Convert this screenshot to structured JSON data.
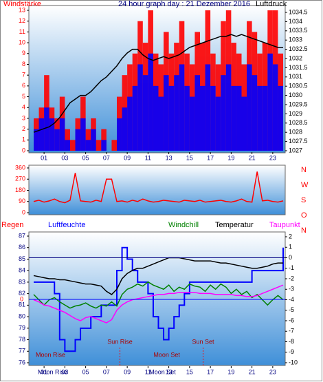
{
  "chart_data": [
    {
      "type": "bars-line",
      "title": "24 hour graph day : 21 Dezember 2016",
      "y_label": "Windstärke",
      "y2_label": "Luftdruck",
      "xlim": [
        0,
        24
      ],
      "xticks": [
        {
          "value": 1,
          "label": "01"
        },
        {
          "value": 3,
          "label": "03"
        },
        {
          "value": 5,
          "label": "05"
        },
        {
          "value": 7,
          "label": "07"
        },
        {
          "value": 9,
          "label": "09"
        },
        {
          "value": 11,
          "label": "11"
        },
        {
          "value": 13,
          "label": "13"
        },
        {
          "value": 15,
          "label": "15"
        },
        {
          "value": 17,
          "label": "17"
        },
        {
          "value": 19,
          "label": "19"
        },
        {
          "value": 21,
          "label": "21"
        },
        {
          "value": 23,
          "label": "23"
        }
      ],
      "ylim": [
        0,
        13
      ],
      "yticks": [
        0,
        1,
        2,
        3,
        4,
        5,
        6,
        7,
        8,
        9,
        10,
        11,
        12,
        13
      ],
      "y2lim": [
        1027,
        1034.5
      ],
      "y2ticks": [
        1027,
        1027.5,
        1028,
        1028.5,
        1029,
        1029.5,
        1030,
        1030.5,
        1031,
        1031.5,
        1032,
        1032.5,
        1033,
        1033.5,
        1034,
        1034.5
      ],
      "x": [
        0,
        0.5,
        1,
        1.5,
        2,
        2.5,
        3,
        3.5,
        4,
        4.5,
        5,
        5.5,
        6,
        6.5,
        7,
        7.5,
        8,
        8.5,
        9,
        9.5,
        10,
        10.5,
        11,
        11.5,
        12,
        12.5,
        13,
        13.5,
        14,
        14.5,
        15,
        15.5,
        16,
        16.5,
        17,
        17.5,
        18,
        18.5,
        19,
        19.5,
        20,
        20.5,
        21,
        21.5,
        22,
        22.5,
        23,
        23.5,
        24
      ],
      "series": [
        {
          "color": "#ff0000",
          "style": "bars",
          "values": [
            3,
            4,
            7,
            4,
            3,
            5,
            2,
            1,
            3,
            5,
            2,
            3,
            1,
            2,
            0,
            1,
            5,
            7,
            8,
            9,
            12,
            10,
            13,
            9,
            8,
            11,
            9,
            10,
            12,
            9,
            8,
            11,
            10,
            13,
            9,
            8,
            12,
            13,
            10,
            9,
            8,
            12,
            11,
            9,
            10,
            13,
            13,
            9,
            8
          ]
        },
        {
          "color": "#0000ff",
          "style": "bars",
          "values": [
            2,
            3,
            4,
            3,
            2,
            3,
            1,
            0,
            2,
            3,
            1,
            2,
            0,
            1,
            0,
            0,
            3,
            4,
            5,
            6,
            8,
            7,
            9,
            6,
            5,
            7,
            6,
            7,
            8,
            6,
            5,
            7,
            6,
            8,
            6,
            5,
            7,
            8,
            6,
            6,
            5,
            8,
            7,
            6,
            6,
            9,
            8,
            6,
            5
          ]
        },
        {
          "color": "#000000",
          "style": "line",
          "axis": "y2",
          "values": [
            1028,
            1028.1,
            1028.2,
            1028.3,
            1028.5,
            1028.8,
            1029.2,
            1029.6,
            1029.8,
            1030,
            1030,
            1030.2,
            1030.5,
            1030.8,
            1031,
            1031.3,
            1031.6,
            1032,
            1032.3,
            1032.5,
            1032.5,
            1032.2,
            1032,
            1031.9,
            1032,
            1032.1,
            1032,
            1032.1,
            1032.2,
            1032.4,
            1032.6,
            1032.7,
            1032.8,
            1032.9,
            1033,
            1033.1,
            1033.2,
            1033.2,
            1033.3,
            1033.2,
            1033.3,
            1033.2,
            1033.1,
            1033,
            1032.9,
            1032.8,
            1032.7,
            1032.6,
            1032.6
          ]
        }
      ]
    },
    {
      "type": "line",
      "xlim": [
        0,
        24
      ],
      "ylim": [
        0,
        360
      ],
      "yticks": [
        0,
        90,
        180,
        270,
        360
      ],
      "compass_labels": [
        "N",
        "W",
        "S",
        "O",
        "N"
      ],
      "x": [
        0,
        0.5,
        1,
        1.5,
        2,
        2.5,
        3,
        3.5,
        4,
        4.5,
        5,
        5.5,
        6,
        6.5,
        7,
        7.5,
        8,
        8.5,
        9,
        9.5,
        10,
        10.5,
        11,
        11.5,
        12,
        12.5,
        13,
        13.5,
        14,
        14.5,
        15,
        15.5,
        16,
        16.5,
        17,
        17.5,
        18,
        18.5,
        19,
        19.5,
        20,
        20.5,
        21,
        21.5,
        22,
        22.5,
        23,
        23.5,
        24
      ],
      "series": [
        {
          "color": "#ff0000",
          "style": "line",
          "values": [
            90,
            100,
            85,
            95,
            110,
            90,
            80,
            100,
            320,
            95,
            90,
            85,
            100,
            90,
            270,
            270,
            90,
            95,
            85,
            100,
            90,
            110,
            95,
            85,
            90,
            100,
            95,
            90,
            85,
            100,
            95,
            90,
            100,
            85,
            90,
            95,
            100,
            90,
            85,
            95,
            110,
            90,
            85,
            330,
            95,
            100,
            90,
            85,
            95
          ]
        }
      ]
    },
    {
      "type": "line",
      "rain_label": "Regen",
      "rain_tick": 0,
      "xlim": [
        0,
        24
      ],
      "xticks": [
        {
          "value": 1,
          "label": "01"
        },
        {
          "value": 3,
          "label": "03"
        },
        {
          "value": 5,
          "label": "05"
        },
        {
          "value": 7,
          "label": "07"
        },
        {
          "value": 9,
          "label": "09"
        },
        {
          "value": 11,
          "label": "11"
        },
        {
          "value": 13,
          "label": "13"
        },
        {
          "value": 15,
          "label": "15"
        },
        {
          "value": 17,
          "label": "17"
        },
        {
          "value": 19,
          "label": "19"
        },
        {
          "value": 21,
          "label": "21"
        },
        {
          "value": 23,
          "label": "23"
        }
      ],
      "ylim": [
        76,
        87
      ],
      "yticks": [
        76,
        77,
        78,
        79,
        80,
        81,
        82,
        83,
        84,
        85,
        86,
        87
      ],
      "y2lim": [
        -10,
        2
      ],
      "y2ticks": [
        -10,
        -9,
        -8,
        -7,
        -6,
        -5,
        -4,
        -3,
        -2,
        -1,
        0,
        1,
        2
      ],
      "x": [
        0,
        0.5,
        1,
        1.5,
        2,
        2.5,
        3,
        3.5,
        4,
        4.5,
        5,
        5.5,
        6,
        6.5,
        7,
        7.5,
        8,
        8.5,
        9,
        9.5,
        10,
        10.5,
        11,
        11.5,
        12,
        12.5,
        13,
        13.5,
        14,
        14.5,
        15,
        15.5,
        16,
        16.5,
        17,
        17.5,
        18,
        18.5,
        19,
        19.5,
        20,
        20.5,
        21,
        21.5,
        22,
        22.5,
        23,
        23.5,
        24
      ],
      "series": [
        {
          "name": "Luftfeuchte",
          "color": "#0000ff",
          "style": "steps",
          "values": [
            83,
            83,
            83,
            83,
            82,
            78,
            77,
            77,
            78,
            79,
            79,
            80,
            80,
            81,
            81,
            81,
            84,
            86,
            85,
            84,
            83,
            83,
            82,
            80,
            79,
            78,
            79,
            80,
            81,
            82,
            83,
            83,
            83,
            83,
            83,
            83,
            83,
            83,
            83,
            83,
            83,
            83,
            84,
            84,
            84,
            84,
            84,
            84,
            86
          ]
        },
        {
          "name": "Windchill",
          "color": "#008000",
          "style": "line",
          "axis": "y2",
          "values": [
            -3.5,
            -4,
            -4.5,
            -4,
            -3.8,
            -4.2,
            -4.5,
            -4.8,
            -4.6,
            -4.5,
            -4.3,
            -4.6,
            -4.8,
            -4.5,
            -4.6,
            -4.2,
            -4.6,
            -3.5,
            -3,
            -2.8,
            -2.5,
            -2.7,
            -2.3,
            -2.6,
            -2.8,
            -3,
            -2.6,
            -3.2,
            -2.8,
            -3,
            -2.5,
            -2.7,
            -2.8,
            -3.2,
            -2.6,
            -3,
            -2.5,
            -2.8,
            -3.4,
            -3,
            -3.5,
            -3.2,
            -3.8,
            -3.5,
            -4,
            -4.5,
            -4,
            -3.6,
            -4
          ]
        },
        {
          "name": "Temperatur",
          "color": "#000000",
          "style": "line",
          "axis": "y2",
          "values": [
            -1.7,
            -1.8,
            -1.9,
            -2,
            -2,
            -2.1,
            -2.1,
            -2.2,
            -2.3,
            -2.4,
            -2.5,
            -2.5,
            -2.6,
            -2.7,
            -3.2,
            -3.5,
            -3,
            -2,
            -1.5,
            -1.2,
            -1,
            -1,
            -0.8,
            -0.6,
            -0.4,
            -0.2,
            0,
            0,
            0,
            -0.1,
            -0.2,
            -0.3,
            -0.3,
            -0.3,
            -0.3,
            -0.4,
            -0.5,
            -0.5,
            -0.6,
            -0.7,
            -0.8,
            -0.9,
            -1,
            -1,
            -0.9,
            -0.8,
            -0.6,
            -0.5,
            -0.5
          ]
        },
        {
          "name": "Taupunkt",
          "color": "#ff00ff",
          "style": "line",
          "axis": "y2",
          "values": [
            -4,
            -4.2,
            -4.5,
            -4.6,
            -4.8,
            -5,
            -5.2,
            -5.5,
            -5.8,
            -6,
            -5.7,
            -5.6,
            -5.8,
            -6,
            -6.2,
            -5.9,
            -5,
            -4.5,
            -4.2,
            -4,
            -3.9,
            -3.8,
            -3.7,
            -3.6,
            -3.5,
            -3.5,
            -3.4,
            -3.4,
            -3.3,
            -3.3,
            -3.3,
            -3.3,
            -3.4,
            -3.4,
            -3.4,
            -3.5,
            -3.5,
            -3.5,
            -3.5,
            -3.6,
            -3.6,
            -3.7,
            -3.7,
            -3.6,
            -3.4,
            -3.2,
            -3,
            -2.8,
            -2.6
          ]
        }
      ],
      "annotations": [
        {
          "text": "Moon Rise",
          "x": 0.2,
          "row": "plot"
        },
        {
          "text": "Sun Rise",
          "x": 8.3,
          "row": "plot",
          "line": true
        },
        {
          "text": "Moon Set",
          "x": 12.8,
          "row": "plot"
        },
        {
          "text": "Sun Set",
          "x": 16.3,
          "row": "plot",
          "line": true
        },
        {
          "text": "Moon Rise",
          "x": 0.4,
          "row": "axis"
        },
        {
          "text": "Moon Set",
          "x": 12.4,
          "row": "axis"
        }
      ]
    }
  ]
}
